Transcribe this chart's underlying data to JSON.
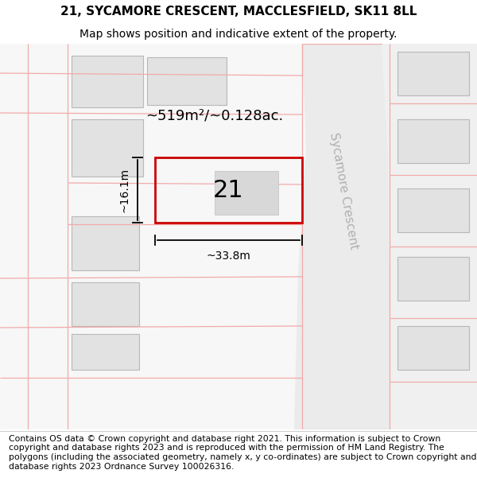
{
  "title_line1": "21, SYCAMORE CRESCENT, MACCLESFIELD, SK11 8LL",
  "title_line2": "Map shows position and indicative extent of the property.",
  "footer_text": "Contains OS data © Crown copyright and database right 2021. This information is subject to Crown copyright and database rights 2023 and is reproduced with the permission of HM Land Registry. The polygons (including the associated geometry, namely x, y co-ordinates) are subject to Crown copyright and database rights 2023 Ordnance Survey 100026316.",
  "map_bg": "#f7f7f7",
  "parcel_fill": "#e2e2e2",
  "parcel_border": "#b8b8b8",
  "highlight_border": "#cc0000",
  "road_line_color": "#f2aaaa",
  "road_fill": "#eeeeee",
  "road_fill2": "#e8e8e8",
  "street_label": "Sycamore Crescent",
  "plot_label": "21",
  "area_label": "~519m²/~0.128ac.",
  "width_label": "~33.8m",
  "height_label": "~16.1m",
  "title_fontsize": 11,
  "subtitle_fontsize": 10,
  "footer_fontsize": 7.8,
  "plot_number_fontsize": 22,
  "street_label_fontsize": 11,
  "dim_label_fontsize": 10,
  "area_label_fontsize": 13
}
